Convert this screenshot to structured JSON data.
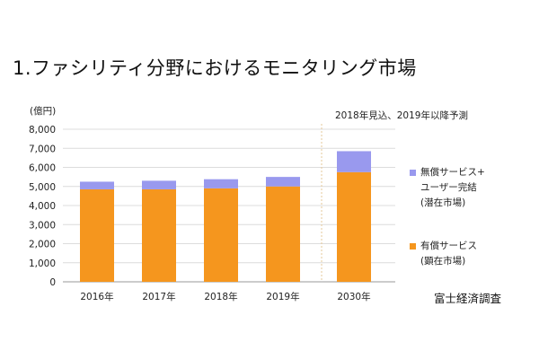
{
  "title": "1.ファシリティ分野におけるモニタリング市場",
  "source": "富士経済調査",
  "chart_data": {
    "type": "bar",
    "stacked": true,
    "unit_label": "(億円)",
    "note": "2018年見込、2019年以降予測",
    "categories": [
      "2016年",
      "2017年",
      "2018年",
      "2019年",
      "2030年"
    ],
    "ylim": [
      0,
      8000
    ],
    "yticks": [
      "0",
      "1,000",
      "2,000",
      "3,000",
      "4,000",
      "5,000",
      "6,000",
      "7,000",
      "8,000"
    ],
    "grid": true,
    "legend_position": "right",
    "series": [
      {
        "name": "有償サービス\n(顕在市場)",
        "color": "#f5961e",
        "values": [
          4850,
          4850,
          4900,
          5000,
          5750
        ]
      },
      {
        "name": "無償サービス+\nユーザー完結\n(潜在市場)",
        "color": "#9999ee",
        "values": [
          400,
          450,
          480,
          500,
          1100
        ]
      }
    ]
  }
}
